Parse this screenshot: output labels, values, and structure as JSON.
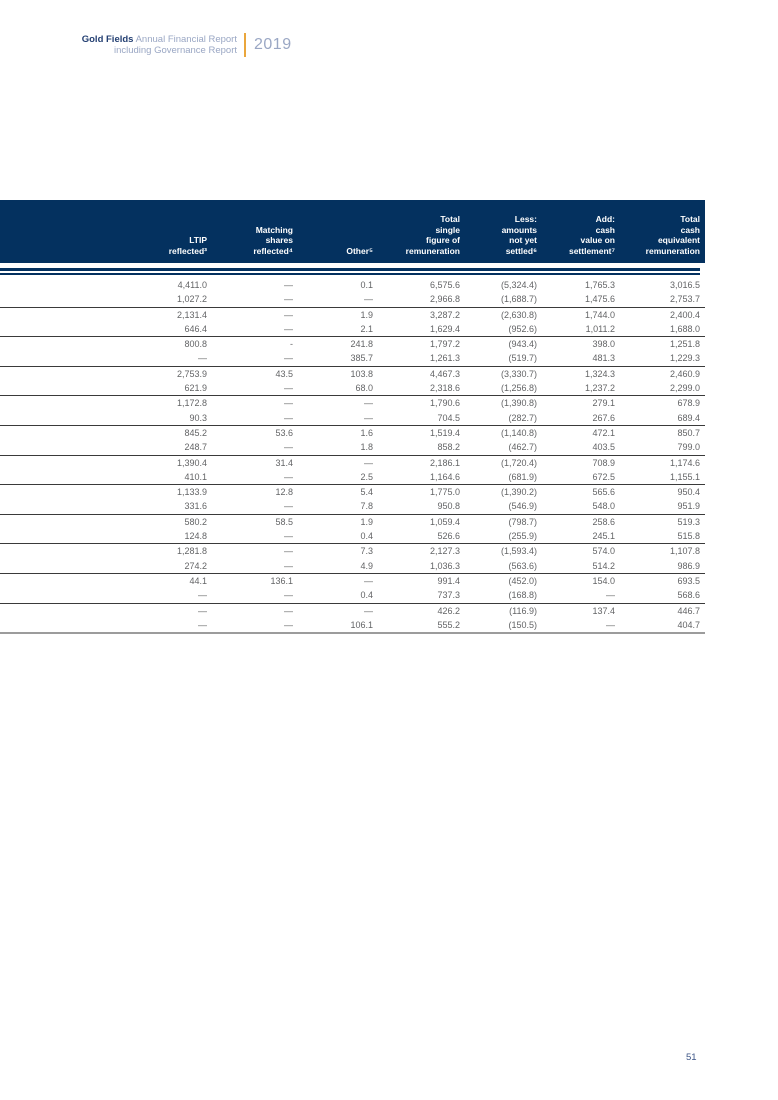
{
  "page_header": {
    "brand": "Gold Fields",
    "subtitle_line1": "Annual Financial Report",
    "subtitle_line2": "including Governance Report",
    "year": "2019",
    "brand_color": "#233f72",
    "subtitle_color": "#9aa7c4",
    "divider_color": "#eaa63c"
  },
  "table": {
    "header_bg": "#04315f",
    "columns": [
      {
        "label": ""
      },
      {
        "label": "LTIP\nreflected³"
      },
      {
        "label": "Matching\nshares\nreflected⁴"
      },
      {
        "label": "Other⁵"
      },
      {
        "label": "Total\nsingle\nfigure of\nremuneration"
      },
      {
        "label": "Less:\namounts\nnot yet\nsettled⁶"
      },
      {
        "label": "Add:\ncash\nvalue on\nsettlement⁷"
      },
      {
        "label": "Total\ncash\nequivalent\nremuneration"
      }
    ],
    "row_groups": [
      {
        "rows": [
          [
            "4,411.0",
            "—",
            "0.1",
            "6,575.6",
            "(5,324.4)",
            "1,765.3",
            "3,016.5"
          ],
          [
            "1,027.2",
            "—",
            "—",
            "2,966.8",
            "(1,688.7)",
            "1,475.6",
            "2,753.7"
          ]
        ]
      },
      {
        "rows": [
          [
            "2,131.4",
            "—",
            "1.9",
            "3,287.2",
            "(2,630.8)",
            "1,744.0",
            "2,400.4"
          ],
          [
            "646.4",
            "—",
            "2.1",
            "1,629.4",
            "(952.6)",
            "1,011.2",
            "1,688.0"
          ]
        ]
      },
      {
        "rows": [
          [
            "800.8",
            "-",
            "241.8",
            "1,797.2",
            "(943.4)",
            "398.0",
            "1,251.8"
          ],
          [
            "—",
            "—",
            "385.7",
            "1,261.3",
            "(519.7)",
            "481.3",
            "1,229.3"
          ]
        ]
      },
      {
        "rows": [
          [
            "2,753.9",
            "43.5",
            "103.8",
            "4,467.3",
            "(3,330.7)",
            "1,324.3",
            "2,460.9"
          ],
          [
            "621.9",
            "—",
            "68.0",
            "2,318.6",
            "(1,256.8)",
            "1,237.2",
            "2,299.0"
          ]
        ]
      },
      {
        "rows": [
          [
            "1,172.8",
            "—",
            "—",
            "1,790.6",
            "(1,390.8)",
            "279.1",
            "678.9"
          ],
          [
            "90.3",
            "—",
            "—",
            "704.5",
            "(282.7)",
            "267.6",
            "689.4"
          ]
        ]
      },
      {
        "rows": [
          [
            "845.2",
            "53.6",
            "1.6",
            "1,519.4",
            "(1,140.8)",
            "472.1",
            "850.7"
          ],
          [
            "248.7",
            "—",
            "1.8",
            "858.2",
            "(462.7)",
            "403.5",
            "799.0"
          ]
        ]
      },
      {
        "rows": [
          [
            "1,390.4",
            "31.4",
            "—",
            "2,186.1",
            "(1,720.4)",
            "708.9",
            "1,174.6"
          ],
          [
            "410.1",
            "—",
            "2.5",
            "1,164.6",
            "(681.9)",
            "672.5",
            "1,155.1"
          ]
        ]
      },
      {
        "rows": [
          [
            "1,133.9",
            "12.8",
            "5.4",
            "1,775.0",
            "(1,390.2)",
            "565.6",
            "950.4"
          ],
          [
            "331.6",
            "—",
            "7.8",
            "950.8",
            "(546.9)",
            "548.0",
            "951.9"
          ]
        ]
      },
      {
        "rows": [
          [
            "580.2",
            "58.5",
            "1.9",
            "1,059.4",
            "(798.7)",
            "258.6",
            "519.3"
          ],
          [
            "124.8",
            "—",
            "0.4",
            "526.6",
            "(255.9)",
            "245.1",
            "515.8"
          ]
        ]
      },
      {
        "rows": [
          [
            "1,281.8",
            "—",
            "7.3",
            "2,127.3",
            "(1,593.4)",
            "574.0",
            "1,107.8"
          ],
          [
            "274.2",
            "—",
            "4.9",
            "1,036.3",
            "(563.6)",
            "514.2",
            "986.9"
          ]
        ]
      },
      {
        "rows": [
          [
            "44.1",
            "136.1",
            "—",
            "991.4",
            "(452.0)",
            "154.0",
            "693.5"
          ],
          [
            "—",
            "—",
            "0.4",
            "737.3",
            "(168.8)",
            "—",
            "568.6"
          ]
        ]
      },
      {
        "rows": [
          [
            "—",
            "—",
            "—",
            "426.2",
            "(116.9)",
            "137.4",
            "446.7"
          ],
          [
            "—",
            "—",
            "106.1",
            "555.2",
            "(150.5)",
            "—",
            "404.7"
          ]
        ]
      }
    ]
  },
  "footer": {
    "page_number": "51"
  }
}
